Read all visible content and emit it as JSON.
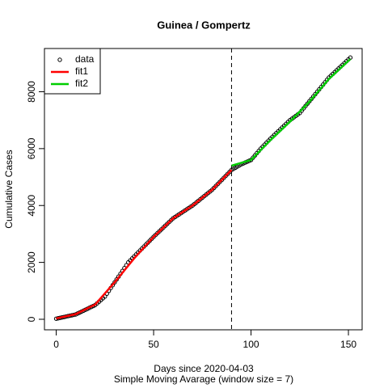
{
  "chart_data": {
    "type": "scatter",
    "title": "Guinea / Gompertz",
    "x_label": "Days since 2020-04-03",
    "subtitle": "Simple Moving Avarage (window size = 7)",
    "y_label": "Cumulative Cases",
    "x": [
      0,
      1,
      2,
      3,
      4,
      5,
      6,
      7,
      8,
      9,
      10,
      11,
      12,
      13,
      14,
      15,
      16,
      17,
      18,
      19,
      20,
      21,
      22,
      23,
      24,
      25,
      26,
      27,
      28,
      29,
      30,
      31,
      32,
      33,
      34,
      35,
      36,
      37,
      38,
      39,
      40,
      41,
      42,
      43,
      44,
      45,
      46,
      47,
      48,
      49,
      50,
      51,
      52,
      53,
      54,
      55,
      56,
      57,
      58,
      59,
      60,
      61,
      62,
      63,
      64,
      65,
      66,
      67,
      68,
      69,
      70,
      71,
      72,
      73,
      74,
      75,
      76,
      77,
      78,
      79,
      80,
      81,
      82,
      83,
      84,
      85,
      86,
      87,
      88,
      89,
      90,
      91,
      92,
      93,
      94,
      95,
      96,
      97,
      98,
      99,
      100,
      101,
      102,
      103,
      104,
      105,
      106,
      107,
      108,
      109,
      110,
      111,
      112,
      113,
      114,
      115,
      116,
      117,
      118,
      119,
      120,
      121,
      122,
      123,
      124,
      125,
      126,
      127,
      128,
      129,
      130,
      131,
      132,
      133,
      134,
      135,
      136,
      137,
      138,
      139,
      140,
      141,
      142,
      143,
      144,
      145,
      146,
      147,
      148,
      149,
      150,
      151
    ],
    "series": [
      {
        "name": "data",
        "color": "#000000",
        "values": [
          20,
          35,
          50,
          65,
          80,
          95,
          110,
          125,
          140,
          155,
          170,
          203,
          236,
          269,
          302,
          335,
          368,
          401,
          434,
          467,
          500,
          560,
          620,
          680,
          740,
          800,
          900,
          1000,
          1100,
          1200,
          1300,
          1400,
          1500,
          1600,
          1700,
          1800,
          1900,
          2000,
          2069,
          2138,
          2208,
          2277,
          2346,
          2415,
          2485,
          2554,
          2623,
          2692,
          2762,
          2831,
          2900,
          2965,
          3030,
          3095,
          3160,
          3225,
          3290,
          3355,
          3420,
          3485,
          3550,
          3595,
          3640,
          3685,
          3730,
          3775,
          3820,
          3865,
          3910,
          3955,
          4000,
          4055,
          4110,
          4165,
          4220,
          4275,
          4330,
          4385,
          4440,
          4495,
          4550,
          4620,
          4690,
          4760,
          4830,
          4900,
          4970,
          5040,
          5110,
          5180,
          5250,
          5290,
          5330,
          5370,
          5410,
          5450,
          5480,
          5510,
          5540,
          5570,
          5600,
          5680,
          5760,
          5840,
          5920,
          6000,
          6070,
          6140,
          6210,
          6280,
          6350,
          6415,
          6480,
          6545,
          6610,
          6675,
          6740,
          6805,
          6870,
          6935,
          7000,
          7050,
          7100,
          7150,
          7200,
          7250,
          7333,
          7417,
          7500,
          7583,
          7667,
          7750,
          7833,
          7917,
          8000,
          8083,
          8167,
          8250,
          8333,
          8417,
          8500,
          8564,
          8627,
          8691,
          8755,
          8818,
          8882,
          8945,
          9009,
          9073,
          9136,
          9200
        ]
      },
      {
        "name": "fit1",
        "color": "#ff0000",
        "x": [
          0,
          10,
          20,
          30,
          40,
          50,
          60,
          70,
          80,
          90
        ],
        "values": [
          30,
          180,
          520,
          1300,
          2140,
          2900,
          3550,
          4000,
          4550,
          5250
        ]
      },
      {
        "name": "fit2",
        "color": "#00cd00",
        "x": [
          90,
          100,
          110,
          120,
          130,
          140,
          151
        ],
        "values": [
          5400,
          5600,
          6300,
          6950,
          7650,
          8450,
          9150
        ]
      }
    ],
    "vline": 90,
    "xlim": [
      -6.04,
      157.04
    ],
    "xticks": [
      0,
      50,
      100,
      150
    ],
    "ylim": [
      -370,
      9520
    ],
    "yticks": [
      0,
      2000,
      4000,
      6000,
      8000
    ],
    "legend": "topleft"
  }
}
